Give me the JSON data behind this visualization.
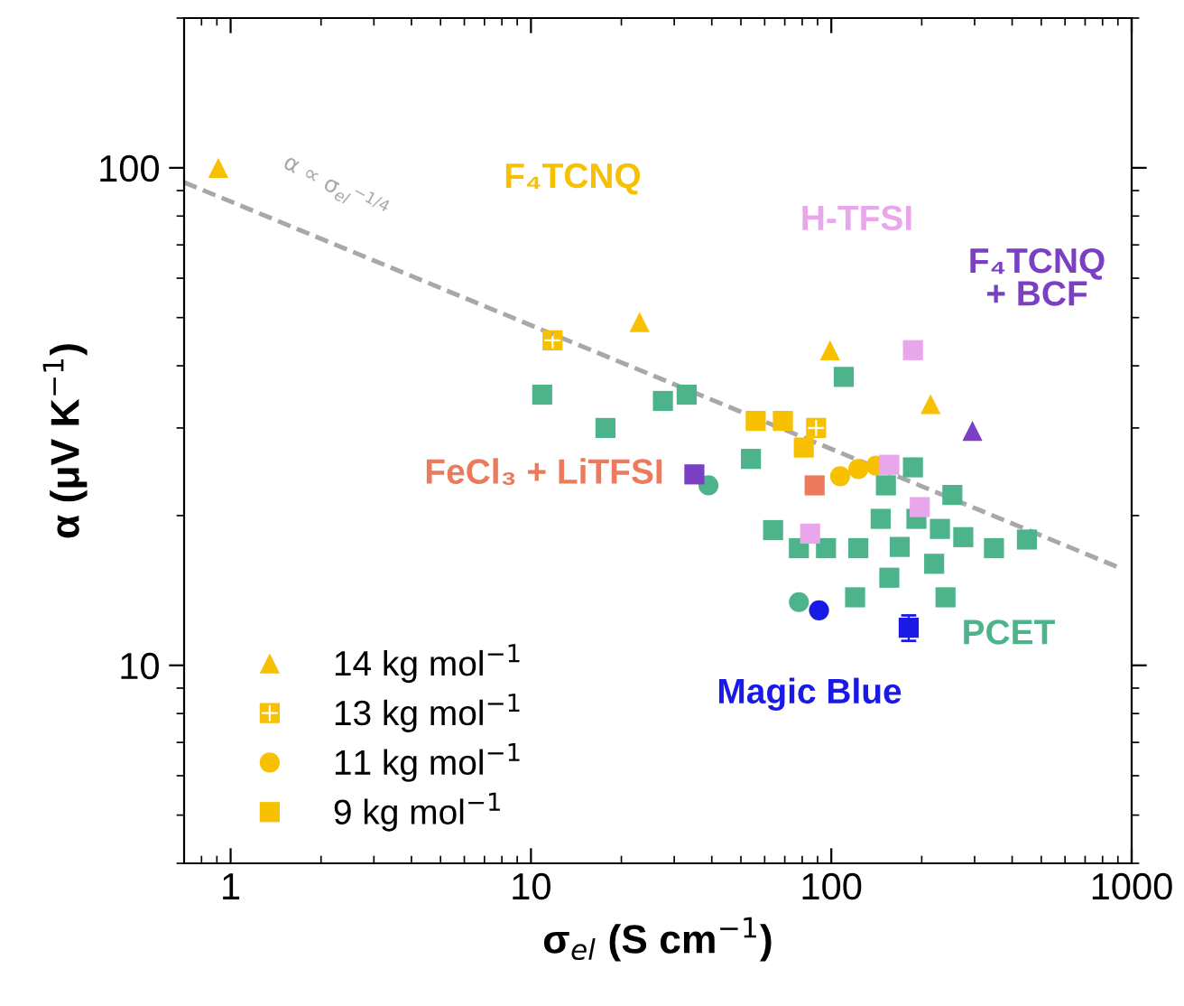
{
  "chart_data": {
    "type": "scatter",
    "xlabel": "σ$_{el}$ (S cm$^{−1}$)",
    "ylabel": "α (μV K$^{−1}$)",
    "log": "xy",
    "xlim": [
      0.7,
      1000
    ],
    "ylim": [
      4,
      200
    ],
    "xticks": [
      1,
      10,
      100,
      1000
    ],
    "yticks": [
      10,
      100
    ],
    "grid": false,
    "legend": "bottom left",
    "series": [
      {
        "name": "14 kg mol$^{−1}$",
        "color": "#f7c000",
        "marker": "triangle",
        "x": [
          0.91,
          23,
          99,
          214
        ],
        "values": [
          100,
          49,
          43,
          33.5
        ]
      },
      {
        "name": "13 kg mol$^{−1}$",
        "color": "#f7c000",
        "marker": "cross",
        "x": [
          11.8,
          89
        ],
        "values": [
          45,
          30
        ]
      },
      {
        "name": "11 kg mol$^{−1}$",
        "color": "#f7c000",
        "marker": "circle",
        "x": [
          107,
          123,
          141
        ],
        "values": [
          24,
          24.8,
          25.2
        ]
      },
      {
        "name": "9 kg mol$^{−1}$",
        "color": "#f7c000",
        "marker": "square",
        "x": [
          56,
          69,
          81
        ],
        "values": [
          31,
          31,
          27.4
        ]
      },
      {
        "name": "PCET",
        "color": "#4db38a",
        "marker": "square",
        "x": [
          10.9,
          17.7,
          27.5,
          33,
          110,
          54,
          187,
          152,
          253,
          64,
          78,
          96,
          123,
          146,
          169,
          192,
          230,
          275,
          348,
          448,
          220,
          156,
          120,
          240
        ],
        "values": [
          35,
          30,
          34,
          35,
          38,
          26,
          25,
          23,
          22,
          18.7,
          17.2,
          17.2,
          17.2,
          19.7,
          17.3,
          19.7,
          18.8,
          18.1,
          17.2,
          17.9,
          16,
          15,
          13.7,
          13.7
        ]
      },
      {
        "color": "#4db38a",
        "marker": "circle",
        "x": [
          39,
          78
        ],
        "values": [
          23,
          13.4
        ]
      },
      {
        "name": "F₄TCNQ\n+ BCF",
        "color": "#7b3fc4",
        "marker": "triangle",
        "x": [
          295
        ],
        "values": [
          29.6
        ]
      },
      {
        "color": "#7b3fc4",
        "marker": "square",
        "x": [
          35
        ],
        "values": [
          24.2
        ]
      },
      {
        "name": "H-TFSI",
        "color": "#eaa6ea",
        "marker": "square",
        "x": [
          187,
          156,
          197,
          85
        ],
        "values": [
          43,
          25.3,
          20.8,
          18.4
        ]
      },
      {
        "name": "FeCl₃ + LiTFSI",
        "color": "#ec7a5c",
        "marker": "square",
        "x": [
          88
        ],
        "values": [
          23
        ]
      },
      {
        "name": "Magic Blue",
        "color": "#1a1ae6",
        "marker": "circle",
        "x": [
          91
        ],
        "values": [
          12.9
        ]
      },
      {
        "color": "#1a1ae6",
        "marker": "square",
        "x": [
          181
        ],
        "values": [
          11.9
        ],
        "errors": [
          0.7
        ]
      },
      {
        "name": "α ∝ σ$_{el}$$^{−1/4}$",
        "type": "line",
        "line_style": "dashed",
        "color": "#a8a8a8",
        "x": [
          0.7,
          890
        ],
        "values": [
          93.5,
          15.8
        ]
      }
    ],
    "annotations": [
      "F₄TCNQ"
    ]
  }
}
